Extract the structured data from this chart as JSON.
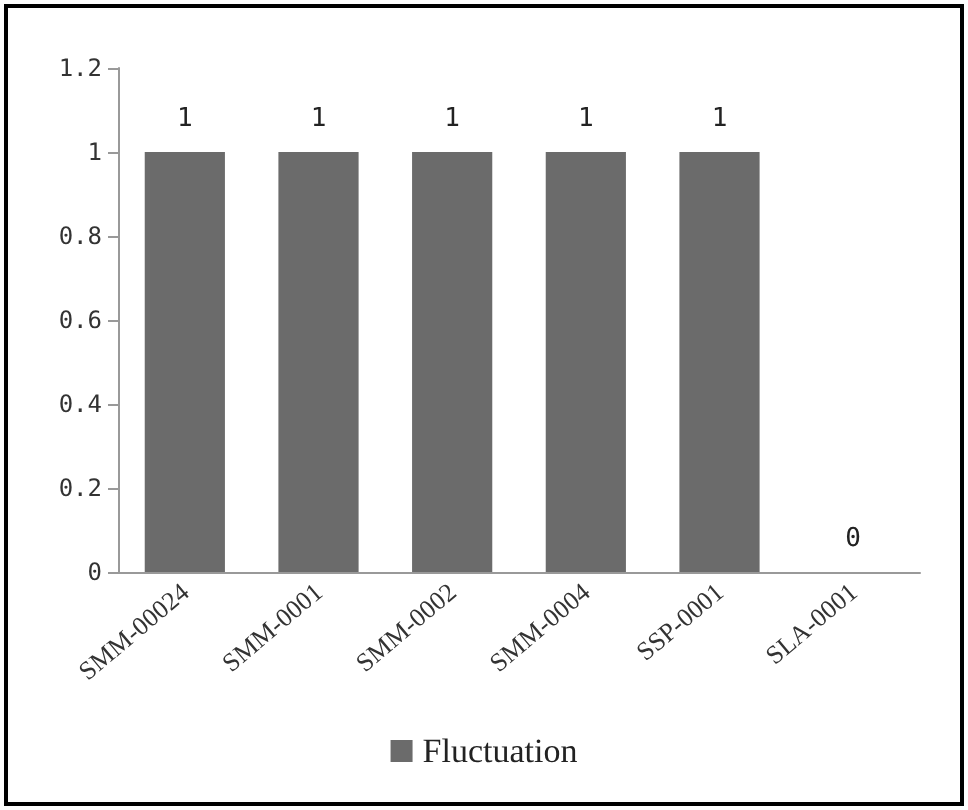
{
  "chart_data": {
    "type": "bar",
    "categories": [
      "SMM-00024",
      "SMM-0001",
      "SMM-0002",
      "SMM-0004",
      "SSP-0001",
      "SLA-0001"
    ],
    "series": [
      {
        "name": "Fluctuation",
        "color": "#6b6b6b",
        "values": [
          1,
          1,
          1,
          1,
          1,
          0
        ]
      }
    ],
    "ylim": [
      0,
      1.2
    ],
    "yticks": [
      0,
      0.2,
      0.4,
      0.6,
      0.8,
      1,
      1.2
    ],
    "grid": false,
    "legend": "bottom",
    "data_labels": true
  }
}
